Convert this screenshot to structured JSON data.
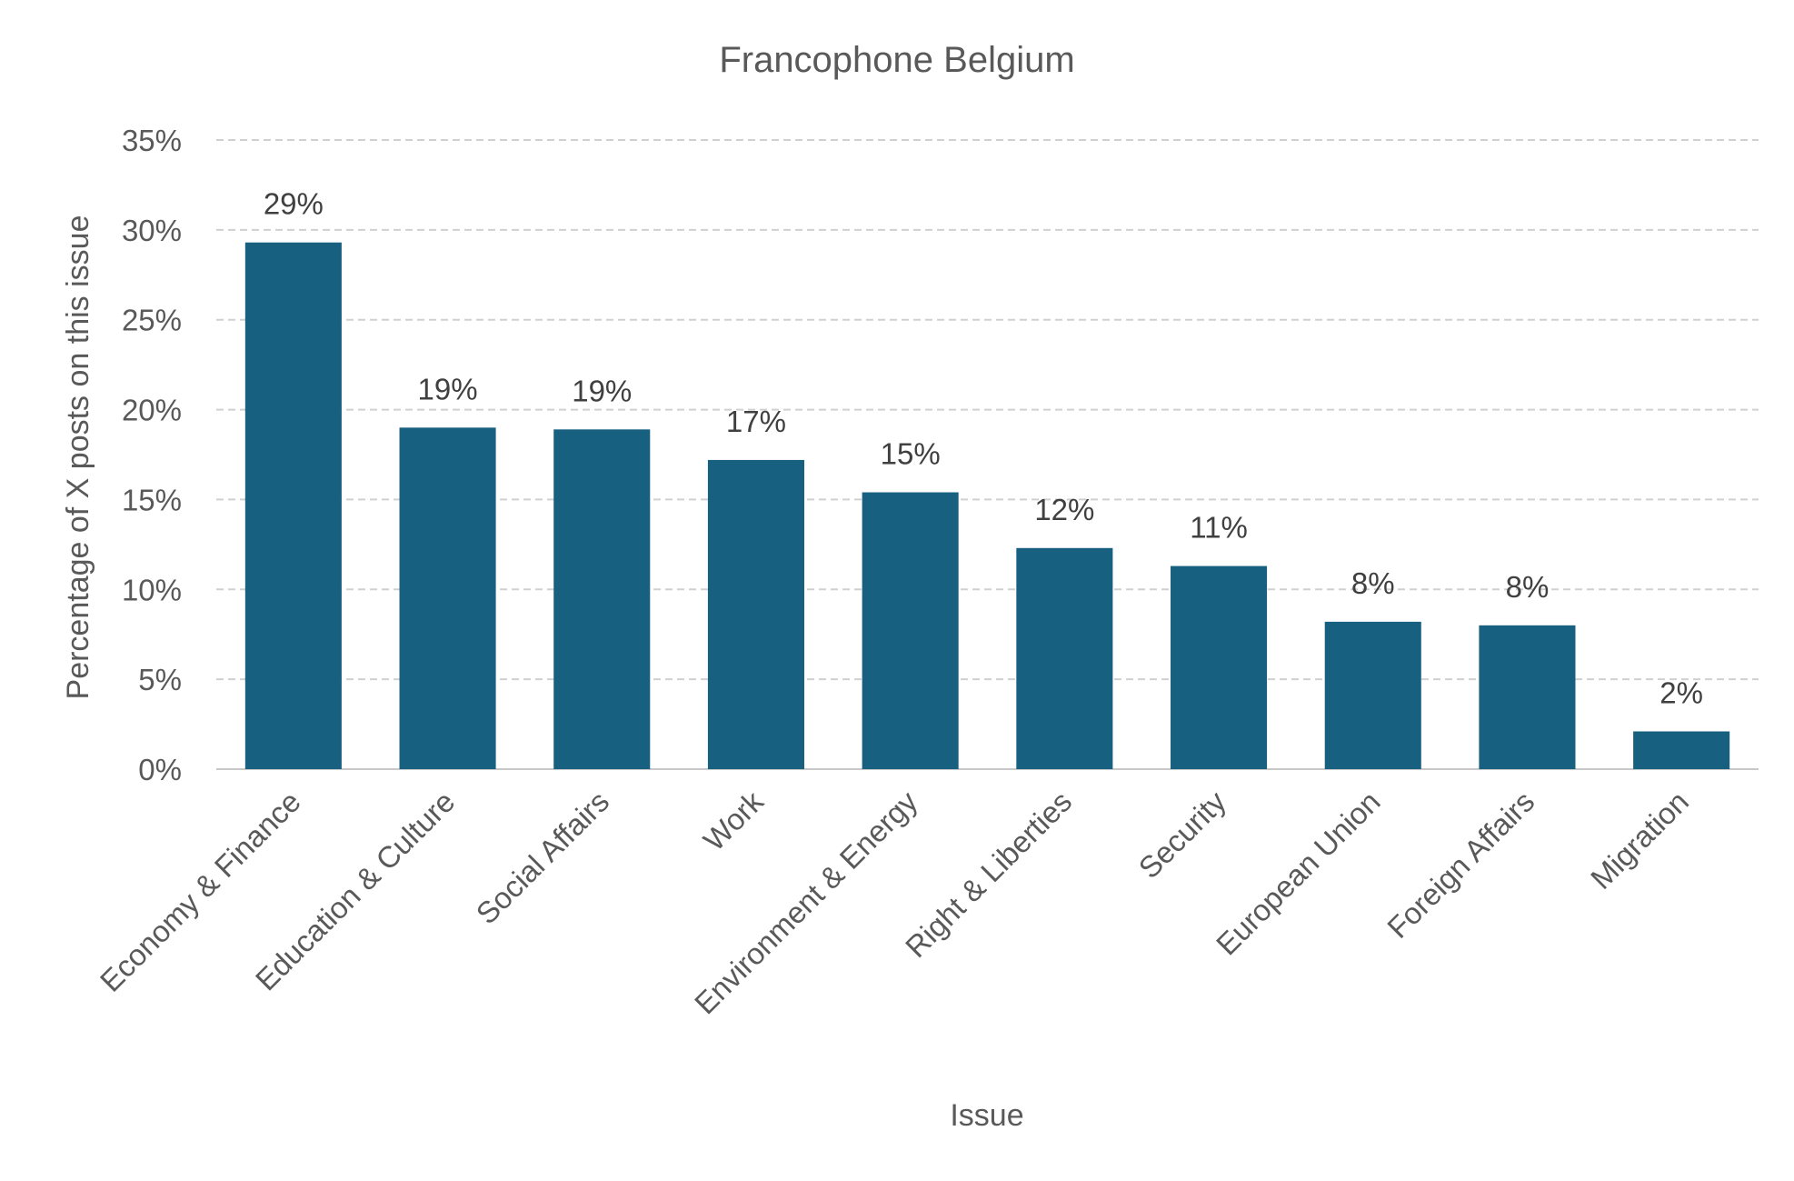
{
  "chart_data": {
    "type": "bar",
    "title": "Francophone Belgium",
    "xlabel": "Issue",
    "ylabel": "Percentage of X posts on this issue",
    "categories": [
      "Economy & Finance",
      "Education & Culture",
      "Social Affairs",
      "Work",
      "Environment & Energy",
      "Right & Liberties",
      "Security",
      "European Union",
      "Foreign Affairs",
      "Migration"
    ],
    "values": [
      29.3,
      19.0,
      18.9,
      17.2,
      15.4,
      12.3,
      11.3,
      8.2,
      8.0,
      2.1
    ],
    "data_labels": [
      "29%",
      "19%",
      "19%",
      "17%",
      "15%",
      "12%",
      "11%",
      "8%",
      "8%",
      "2%"
    ],
    "ylim": [
      0,
      35
    ],
    "yticks": [
      0,
      5,
      10,
      15,
      20,
      25,
      30,
      35
    ],
    "ytick_labels": [
      "0%",
      "5%",
      "10%",
      "15%",
      "20%",
      "25%",
      "30%",
      "35%"
    ],
    "grid": true,
    "legend": "none",
    "bar_color": "#17607f"
  }
}
